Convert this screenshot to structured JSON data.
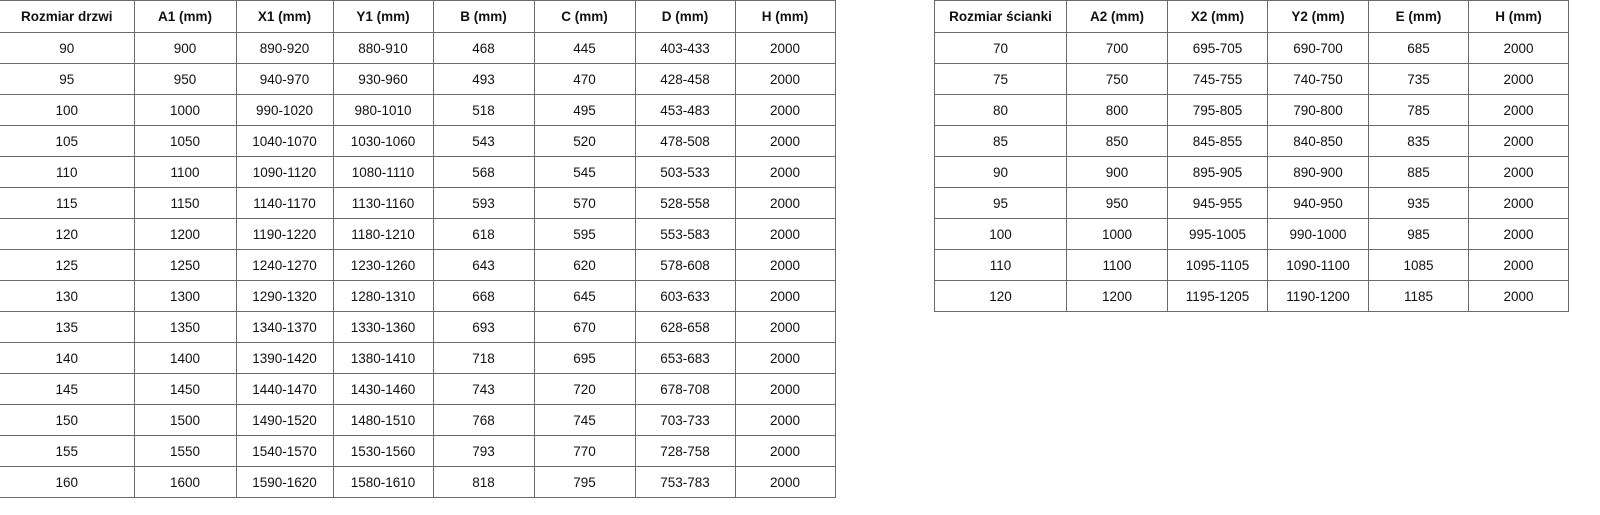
{
  "door_table": {
    "headers": [
      "Rozmiar drzwi",
      "A1 (mm)",
      "X1 (mm)",
      "Y1 (mm)",
      "B (mm)",
      "C (mm)",
      "D (mm)",
      "H (mm)"
    ],
    "rows": [
      [
        "90",
        "900",
        "890-920",
        "880-910",
        "468",
        "445",
        "403-433",
        "2000"
      ],
      [
        "95",
        "950",
        "940-970",
        "930-960",
        "493",
        "470",
        "428-458",
        "2000"
      ],
      [
        "100",
        "1000",
        "990-1020",
        "980-1010",
        "518",
        "495",
        "453-483",
        "2000"
      ],
      [
        "105",
        "1050",
        "1040-1070",
        "1030-1060",
        "543",
        "520",
        "478-508",
        "2000"
      ],
      [
        "110",
        "1100",
        "1090-1120",
        "1080-1110",
        "568",
        "545",
        "503-533",
        "2000"
      ],
      [
        "115",
        "1150",
        "1140-1170",
        "1130-1160",
        "593",
        "570",
        "528-558",
        "2000"
      ],
      [
        "120",
        "1200",
        "1190-1220",
        "1180-1210",
        "618",
        "595",
        "553-583",
        "2000"
      ],
      [
        "125",
        "1250",
        "1240-1270",
        "1230-1260",
        "643",
        "620",
        "578-608",
        "2000"
      ],
      [
        "130",
        "1300",
        "1290-1320",
        "1280-1310",
        "668",
        "645",
        "603-633",
        "2000"
      ],
      [
        "135",
        "1350",
        "1340-1370",
        "1330-1360",
        "693",
        "670",
        "628-658",
        "2000"
      ],
      [
        "140",
        "1400",
        "1390-1420",
        "1380-1410",
        "718",
        "695",
        "653-683",
        "2000"
      ],
      [
        "145",
        "1450",
        "1440-1470",
        "1430-1460",
        "743",
        "720",
        "678-708",
        "2000"
      ],
      [
        "150",
        "1500",
        "1490-1520",
        "1480-1510",
        "768",
        "745",
        "703-733",
        "2000"
      ],
      [
        "155",
        "1550",
        "1540-1570",
        "1530-1560",
        "793",
        "770",
        "728-758",
        "2000"
      ],
      [
        "160",
        "1600",
        "1590-1620",
        "1580-1610",
        "818",
        "795",
        "753-783",
        "2000"
      ]
    ]
  },
  "wall_table": {
    "headers": [
      "Rozmiar ścianki",
      "A2 (mm)",
      "X2 (mm)",
      "Y2 (mm)",
      "E (mm)",
      "H (mm)"
    ],
    "rows": [
      [
        "70",
        "700",
        "695-705",
        "690-700",
        "685",
        "2000"
      ],
      [
        "75",
        "750",
        "745-755",
        "740-750",
        "735",
        "2000"
      ],
      [
        "80",
        "800",
        "795-805",
        "790-800",
        "785",
        "2000"
      ],
      [
        "85",
        "850",
        "845-855",
        "840-850",
        "835",
        "2000"
      ],
      [
        "90",
        "900",
        "895-905",
        "890-900",
        "885",
        "2000"
      ],
      [
        "95",
        "950",
        "945-955",
        "940-950",
        "935",
        "2000"
      ],
      [
        "100",
        "1000",
        "995-1005",
        "990-1000",
        "985",
        "2000"
      ],
      [
        "110",
        "1100",
        "1095-1105",
        "1090-1100",
        "1085",
        "2000"
      ],
      [
        "120",
        "1200",
        "1195-1205",
        "1190-1200",
        "1185",
        "2000"
      ]
    ]
  }
}
